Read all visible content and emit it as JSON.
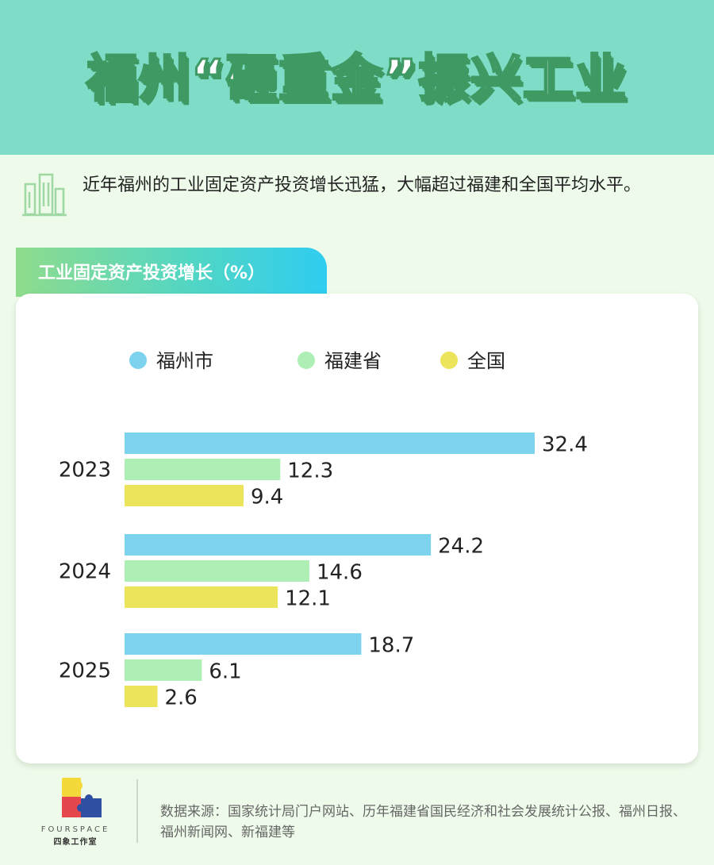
{
  "header": {
    "title": "福州“砸重金”振兴工业"
  },
  "intro": {
    "text": "近年福州的工业固定资产投资增长迅猛，大幅超过福建和全国平均水平。",
    "icon": "building-icon"
  },
  "section": {
    "tab_label": "工业固定资产投资增长（%）"
  },
  "colors": {
    "header_bg": "#7fdcc6",
    "page_bg": "#eefbea",
    "fuzhou": "#7dd2ee",
    "fujian": "#aeefb6",
    "national": "#ece55c"
  },
  "chart_data": {
    "type": "bar",
    "orientation": "horizontal",
    "title": "工业固定资产投资增长（%）",
    "categories": [
      "2023",
      "2024",
      "2025"
    ],
    "series": [
      {
        "name": "福州市",
        "values": [
          32.4,
          24.2,
          18.7
        ],
        "color": "#7dd2ee"
      },
      {
        "name": "福建省",
        "values": [
          12.3,
          14.6,
          6.1
        ],
        "color": "#aeefb6"
      },
      {
        "name": "全国",
        "values": [
          9.4,
          12.1,
          2.6
        ],
        "color": "#ece55c"
      }
    ],
    "xlim": [
      0,
      32.4
    ],
    "grid": false,
    "legend": "top"
  },
  "footer": {
    "logo_text": "FOURSPACE",
    "logo_subtext": "四象工作室",
    "source": "数据来源：国家统计局门户网站、历年福建省国民经济和社会发展统计公报、福州日报、福州新闻网、新福建等"
  }
}
